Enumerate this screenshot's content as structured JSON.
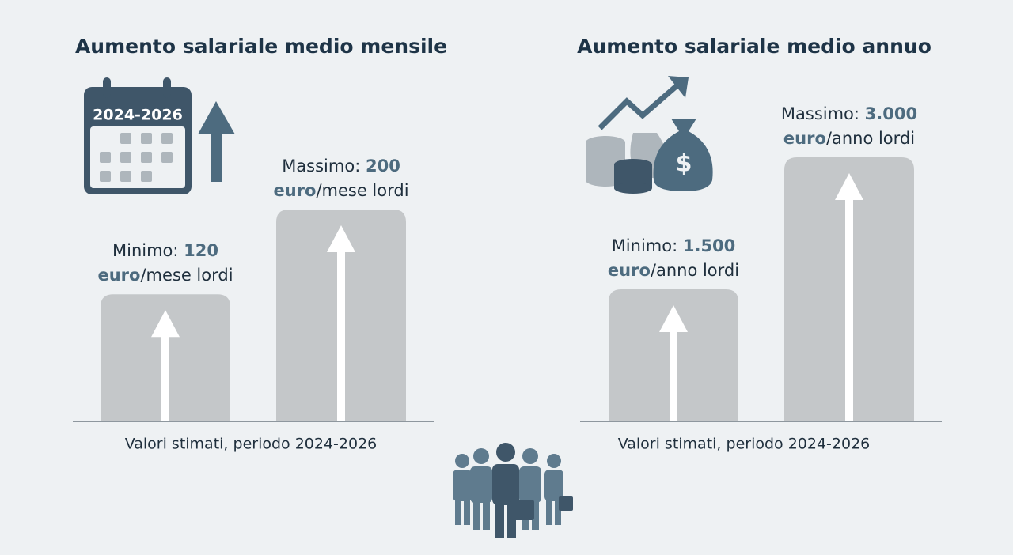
{
  "calendar_label": "2024-2026",
  "chart_data": [
    {
      "type": "bar",
      "title": "Aumento salariale medio mensile",
      "categories": [
        "Minimo:",
        "Massimo:"
      ],
      "values": [
        120,
        200
      ],
      "unit": "euro",
      "unit_suffix": "/mese lordi",
      "caption": "Valori stimati, periodo 2024-2026",
      "color": "#c4c7c9"
    },
    {
      "type": "bar",
      "title": "Aumento salariale medio annuo",
      "categories": [
        "Minimo:",
        "Massimo:"
      ],
      "values": [
        1500,
        3000
      ],
      "value_labels": [
        "1.500",
        "3.000"
      ],
      "unit": "euro",
      "unit_suffix": "/anno lordi",
      "caption": "Valori stimati, periodo 2024-2026",
      "color": "#c4c7c9"
    }
  ]
}
